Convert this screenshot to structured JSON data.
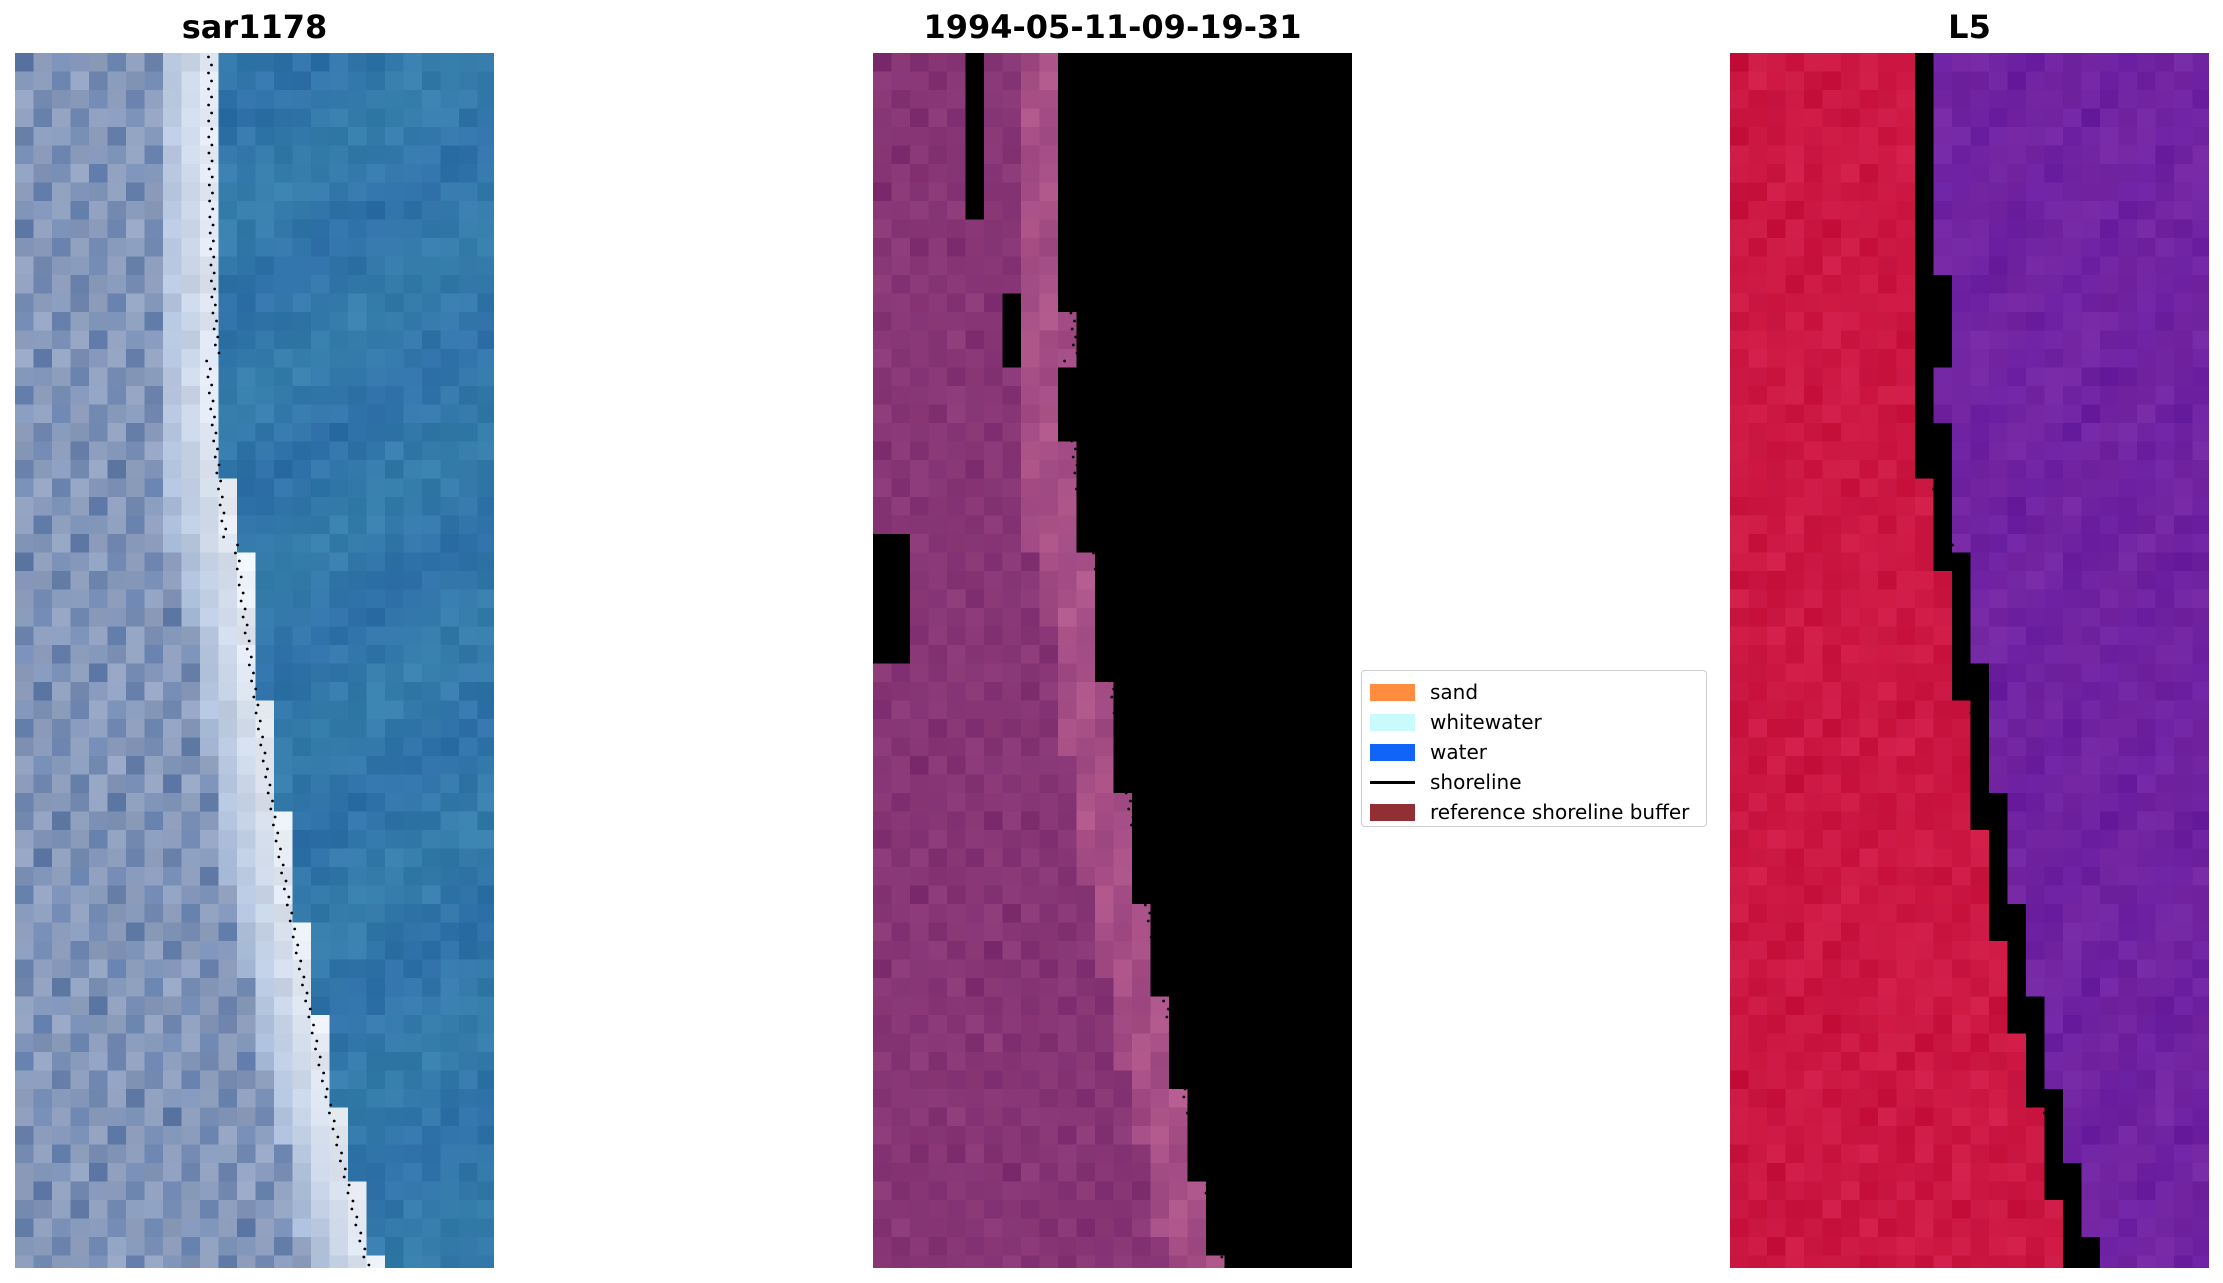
{
  "panels": [
    {
      "title": "sar1178"
    },
    {
      "title": "1994-05-11-09-19-31"
    },
    {
      "title": "L5"
    }
  ],
  "legend": {
    "items": [
      {
        "label": "sand",
        "color": "#ff8c3f"
      },
      {
        "label": "whitewater",
        "color": "#c9fbfc"
      },
      {
        "label": "water",
        "color": "#1064f8"
      },
      {
        "label": "shoreline",
        "color": "#000000"
      },
      {
        "label": "reference shoreline buffer",
        "color": "#922f34"
      }
    ]
  },
  "colors": {
    "sar_water": "#2e6fa8",
    "sar_sand": "#5f7aa8",
    "sar_white": "#f4f6fa",
    "class_water": "#54229b",
    "class_land": "#7d2d6f",
    "class_light": "#b45a8e",
    "class_red": "#c13745",
    "ndwi_water": "#6a1ea0",
    "ndwi_land": "#c8123d",
    "ndwi_pink": "#d46a9e"
  }
}
